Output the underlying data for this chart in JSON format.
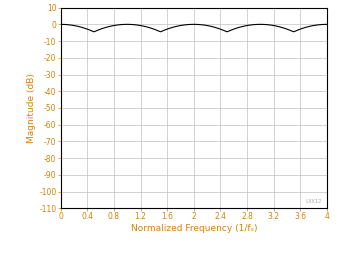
{
  "xlabel": "Normalized Frequency (1/fₛ)",
  "ylabel": "Magnitude (dB)",
  "xlim": [
    0,
    4
  ],
  "ylim": [
    -110,
    10
  ],
  "xticks": [
    0,
    0.4,
    0.8,
    1.2,
    1.6,
    2.0,
    2.4,
    2.8,
    3.2,
    3.6,
    4.0
  ],
  "yticks": [
    10,
    0,
    -10,
    -20,
    -30,
    -40,
    -50,
    -60,
    -70,
    -80,
    -90,
    -100,
    -110
  ],
  "line_color": "#000000",
  "grid_color": "#c0c0c0",
  "axis_label_color": "#d4820a",
  "tick_label_color": "#d4820a",
  "background_color": "#ffffff",
  "watermark": "LXX12",
  "linewidth": 0.8
}
